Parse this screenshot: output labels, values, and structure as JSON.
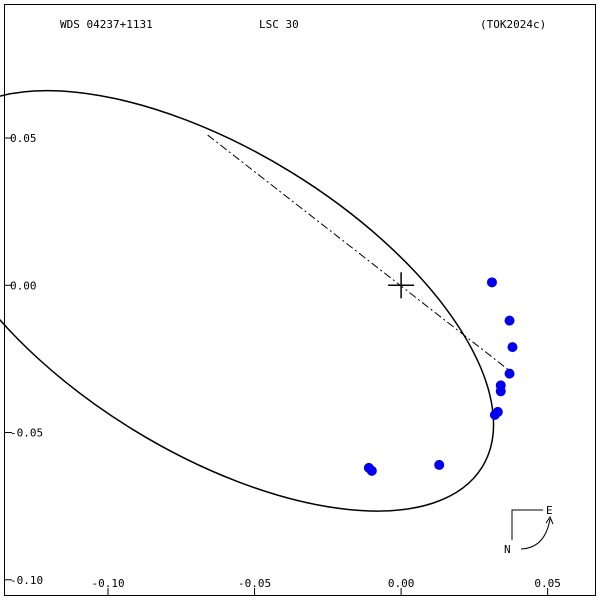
{
  "header": {
    "wds": "WDS 04237+1131",
    "code": "LSC  30",
    "ref": "(TOK2024c)"
  },
  "compass": {
    "east": "E",
    "north": "N"
  },
  "chart_data": {
    "type": "scatter",
    "x_ticks": [
      "-0.10",
      "-0.05",
      "0.00",
      "0.05"
    ],
    "x_tick_values": [
      -0.1,
      -0.05,
      0.0,
      0.05
    ],
    "y_ticks": [
      "0.05",
      "0.00",
      "-0.05",
      "-0.10"
    ],
    "y_tick_values": [
      0.05,
      0.0,
      -0.05,
      -0.1
    ],
    "xlim": [
      -0.1355,
      0.0665
    ],
    "ylim": [
      -0.1055,
      0.0955
    ],
    "grid": false,
    "origin_marker": [
      0,
      0
    ],
    "line_of_nodes": {
      "from": [
        -0.066,
        0.051
      ],
      "to": [
        0.037,
        -0.029
      ]
    },
    "orbit": {
      "center": [
        -0.0645,
        -0.0053
      ],
      "semi_axis_1": 0.1082,
      "semi_axis_2": 0.0513,
      "angle_deg": -31.6
    },
    "color": "#0000ee",
    "points": [
      {
        "x": 0.031,
        "y": 0.001
      },
      {
        "x": 0.037,
        "y": -0.012
      },
      {
        "x": 0.038,
        "y": -0.021
      },
      {
        "x": 0.037,
        "y": -0.03
      },
      {
        "x": 0.034,
        "y": -0.034
      },
      {
        "x": 0.034,
        "y": -0.036
      },
      {
        "x": 0.033,
        "y": -0.043
      },
      {
        "x": 0.032,
        "y": -0.044
      },
      {
        "x": 0.013,
        "y": -0.061
      },
      {
        "x": -0.011,
        "y": -0.062
      },
      {
        "x": -0.01,
        "y": -0.063
      }
    ]
  }
}
